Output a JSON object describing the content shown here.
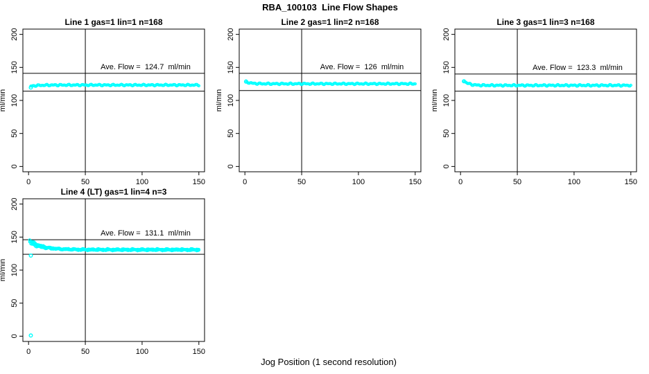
{
  "figure": {
    "title": "RBA_100103  Line Flow Shapes",
    "xlabel": "Jog Position (1 second resolution)",
    "ylabel": "ml/min",
    "point_color": "#00FFFF",
    "background": "#FFFFFF"
  },
  "chart_data": [
    {
      "type": "scatter",
      "title": "Line 1 gas=1 lin=1 n=168",
      "annotation": "Ave. Flow =  124.7  ml/min",
      "ave_flow_ml_min": 124.7,
      "n": 168,
      "ylabel": "ml/min",
      "xlim": [
        -5,
        155
      ],
      "ylim": [
        -8,
        208
      ],
      "x_ticks": [
        0,
        50,
        100,
        150
      ],
      "y_ticks": [
        0,
        50,
        100,
        150,
        200
      ],
      "vline_x": 50,
      "hlines": [
        141,
        114
      ],
      "series": [
        {
          "x0": 2,
          "x1": 150,
          "n": 168,
          "start": 121.5,
          "flat": 123.3,
          "tau": 6,
          "amp": 1.2,
          "seed": 1
        }
      ],
      "outliers": [
        [
          2,
          119.5
        ]
      ]
    },
    {
      "type": "scatter",
      "title": "Line 2 gas=1 lin=2 n=168",
      "annotation": "Ave. Flow =  126  ml/min",
      "ave_flow_ml_min": 126,
      "n": 168,
      "ylabel": "ml/min",
      "xlim": [
        -5,
        155
      ],
      "ylim": [
        -8,
        208
      ],
      "x_ticks": [
        0,
        50,
        100,
        150
      ],
      "y_ticks": [
        0,
        50,
        100,
        150,
        200
      ],
      "vline_x": 50,
      "hlines": [
        141,
        115
      ],
      "series": [
        {
          "x0": 1,
          "x1": 150,
          "n": 168,
          "start": 128.5,
          "flat": 125.2,
          "tau": 4,
          "amp": 1.2,
          "seed": 2
        }
      ],
      "outliers": [
        [
          1,
          128.5
        ]
      ]
    },
    {
      "type": "scatter",
      "title": "Line 3 gas=1 lin=3 n=168",
      "annotation": "Ave. Flow =  123.3  ml/min",
      "ave_flow_ml_min": 123.3,
      "n": 168,
      "ylabel": "ml/min",
      "xlim": [
        -5,
        155
      ],
      "ylim": [
        -8,
        208
      ],
      "x_ticks": [
        0,
        50,
        100,
        150
      ],
      "y_ticks": [
        0,
        50,
        100,
        150,
        200
      ],
      "vline_x": 50,
      "hlines": [
        140,
        114
      ],
      "series": [
        {
          "x0": 3,
          "x1": 150,
          "n": 168,
          "start": 130,
          "flat": 122.8,
          "tau": 4,
          "amp": 1.3,
          "seed": 3
        }
      ],
      "outliers": [
        [
          3,
          129
        ]
      ]
    },
    {
      "type": "scatter",
      "title": "Line 4 (LT) gas=1 lin=4 n=3",
      "annotation": "Ave. Flow =  131.1  ml/min",
      "ave_flow_ml_min": 131.1,
      "n": 3,
      "ylabel": "ml/min",
      "xlim": [
        -5,
        155
      ],
      "ylim": [
        -8,
        208
      ],
      "x_ticks": [
        0,
        50,
        100,
        150
      ],
      "y_ticks": [
        0,
        50,
        100,
        150,
        200
      ],
      "vline_x": 50,
      "hlines": [
        146,
        124
      ],
      "series": [
        {
          "x0": 1,
          "x1": 150,
          "n": 150,
          "start": 146,
          "flat": 130.8,
          "tau": 11,
          "amp": 1.2,
          "seed": 4
        },
        {
          "x0": 1,
          "x1": 150,
          "n": 150,
          "start": 143,
          "flat": 130.4,
          "tau": 13,
          "amp": 1.2,
          "seed": 5
        },
        {
          "x0": 2,
          "x1": 150,
          "n": 150,
          "start": 140,
          "flat": 131.4,
          "tau": 9,
          "amp": 1.2,
          "seed": 6
        }
      ],
      "outliers": [
        [
          2,
          122
        ],
        [
          2,
          1
        ]
      ]
    }
  ]
}
